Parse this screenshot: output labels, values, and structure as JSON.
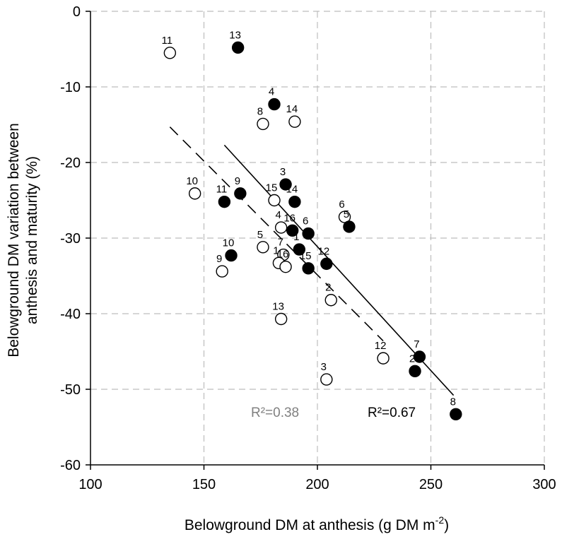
{
  "chart_data": {
    "type": "scatter",
    "xlabel": "Belowground DM at anthesis (g DM m",
    "xlabel_superscript": "-2",
    "xlabel_suffix": ")",
    "ylabel_line1": "Belowground DM variation between",
    "ylabel_line2": "anthesis and maturity (%)",
    "xlim": [
      100,
      300
    ],
    "ylim": [
      -60,
      0
    ],
    "x_ticks": [
      100,
      150,
      200,
      250,
      300
    ],
    "y_ticks": [
      0,
      -10,
      -20,
      -30,
      -40,
      -50,
      -60
    ],
    "grid": "dashed",
    "series": [
      {
        "marker": "filled-circle",
        "color": "#000000",
        "points": [
          {
            "label": "13",
            "x": 165,
            "y": -4.8
          },
          {
            "label": "4",
            "x": 181,
            "y": -12.3
          },
          {
            "label": "3",
            "x": 186,
            "y": -22.9
          },
          {
            "label": "9",
            "x": 166,
            "y": -24.1
          },
          {
            "label": "11",
            "x": 159,
            "y": -25.2
          },
          {
            "label": "14",
            "x": 190,
            "y": -25.2
          },
          {
            "label": "16",
            "x": 189,
            "y": -29.0
          },
          {
            "label": "6",
            "x": 196,
            "y": -29.4
          },
          {
            "label": "5",
            "x": 214,
            "y": -28.5
          },
          {
            "label": "1",
            "x": 192,
            "y": -31.5
          },
          {
            "label": "10",
            "x": 162,
            "y": -32.3
          },
          {
            "label": "12",
            "x": 204,
            "y": -33.4
          },
          {
            "label": "15",
            "x": 196,
            "y": -34.0
          },
          {
            "label": "7",
            "x": 245,
            "y": -45.7
          },
          {
            "label": "2",
            "x": 243,
            "y": -47.6
          },
          {
            "label": "8",
            "x": 261,
            "y": -53.3
          }
        ],
        "trendline": {
          "x1": 159,
          "y1": -17.7,
          "x2": 260,
          "y2": -50.8,
          "style": "solid",
          "r2_label": "R²=0.67"
        }
      },
      {
        "marker": "open-circle",
        "color": "#000000",
        "points": [
          {
            "label": "11",
            "x": 135,
            "y": -5.5
          },
          {
            "label": "8",
            "x": 176,
            "y": -14.9
          },
          {
            "label": "14",
            "x": 190,
            "y": -14.6
          },
          {
            "label": "10",
            "x": 146,
            "y": -24.1
          },
          {
            "label": "15",
            "x": 181,
            "y": -25.0
          },
          {
            "label": "6",
            "x": 212,
            "y": -27.2
          },
          {
            "label": "4",
            "x": 184,
            "y": -28.6
          },
          {
            "label": "5",
            "x": 176,
            "y": -31.2
          },
          {
            "label": "7",
            "x": 185,
            "y": -32.2
          },
          {
            "label": "1",
            "x": 183,
            "y": -33.3
          },
          {
            "label": "16",
            "x": 186,
            "y": -33.8
          },
          {
            "label": "9",
            "x": 158,
            "y": -34.4
          },
          {
            "label": "2",
            "x": 206,
            "y": -38.2
          },
          {
            "label": "13",
            "x": 184,
            "y": -40.7
          },
          {
            "label": "12",
            "x": 229,
            "y": -45.9
          },
          {
            "label": "3",
            "x": 204,
            "y": -48.7
          }
        ],
        "trendline": {
          "x1": 135,
          "y1": -15.3,
          "x2": 229,
          "y2": -43.6,
          "style": "dashed",
          "r2_label": "R²=0.38"
        }
      }
    ],
    "annotations": {
      "r2_open": "R²=0.38",
      "r2_open_color": "#808080",
      "r2_filled": "R²=0.67",
      "r2_filled_color": "#000000"
    }
  }
}
